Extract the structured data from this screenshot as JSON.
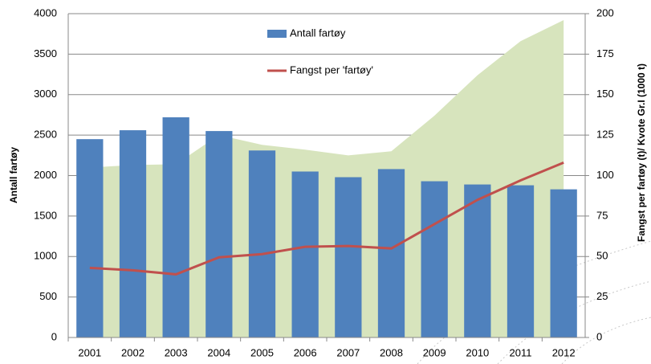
{
  "chart_data": {
    "type": "bar-line-area",
    "categories": [
      "2001",
      "2002",
      "2003",
      "2004",
      "2005",
      "2006",
      "2007",
      "2008",
      "2009",
      "2010",
      "2011",
      "2012"
    ],
    "y_label": "Antall fartøy",
    "y2_label": "Fangst per fartøy (t)/ Kvote Gr.I (1000 t)",
    "ylim": [
      0,
      4000
    ],
    "yticks": [
      0,
      500,
      1000,
      1500,
      2000,
      2500,
      3000,
      3500,
      4000
    ],
    "y2lim": [
      0,
      200
    ],
    "y2ticks": [
      0,
      25,
      50,
      75,
      100,
      125,
      150,
      175,
      200
    ],
    "grid": true,
    "series": [
      {
        "kind": "area",
        "color": "#d7e4bd",
        "axis": "y2",
        "values": [
          105,
          106.5,
          107,
          125,
          119,
          116,
          112.5,
          115,
          137,
          162,
          183,
          196
        ]
      },
      {
        "name": "Antall fartøy",
        "kind": "bar",
        "color": "#4f81bd",
        "values": [
          2450,
          2560,
          2720,
          2550,
          2310,
          2050,
          1980,
          2080,
          1930,
          1890,
          1880,
          1830
        ]
      },
      {
        "name": "Fangst per 'fartøy'",
        "kind": "line",
        "color": "#c0504d",
        "axis": "y2",
        "values": [
          43,
          41.5,
          39,
          49.5,
          51.5,
          56,
          56.5,
          55,
          70,
          85,
          97,
          108
        ]
      }
    ]
  }
}
